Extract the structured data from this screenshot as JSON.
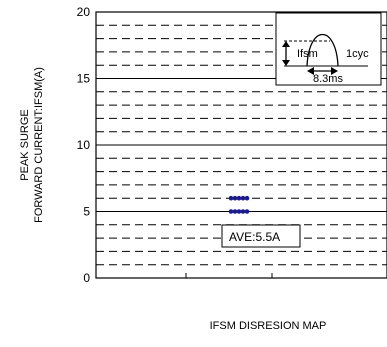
{
  "chart_data": {
    "type": "scatter",
    "ylabel_line1": "PEAK SURGE",
    "ylabel_line2": "FORWARD CURRENT:IFSM(A)",
    "xlabel": "IFSM DISRESION MAP",
    "ylim": [
      0,
      20
    ],
    "y_ticks": [
      "0",
      "5",
      "10",
      "15",
      "20"
    ],
    "grid": "dashed minor, solid major",
    "points": [
      {
        "x": 1,
        "y": 6
      },
      {
        "x": 2,
        "y": 6
      },
      {
        "x": 3,
        "y": 6
      },
      {
        "x": 4,
        "y": 6
      },
      {
        "x": 5,
        "y": 6
      },
      {
        "x": 1,
        "y": 5
      },
      {
        "x": 2,
        "y": 5
      },
      {
        "x": 3,
        "y": 5
      },
      {
        "x": 4,
        "y": 5
      },
      {
        "x": 5,
        "y": 5
      }
    ],
    "point_color": "#1a1a8c",
    "annotation": "AVE:5.5A",
    "inset": {
      "peak_label": "Ifsm",
      "cycle_label": "1cyc",
      "width_label": "8.3ms"
    }
  }
}
